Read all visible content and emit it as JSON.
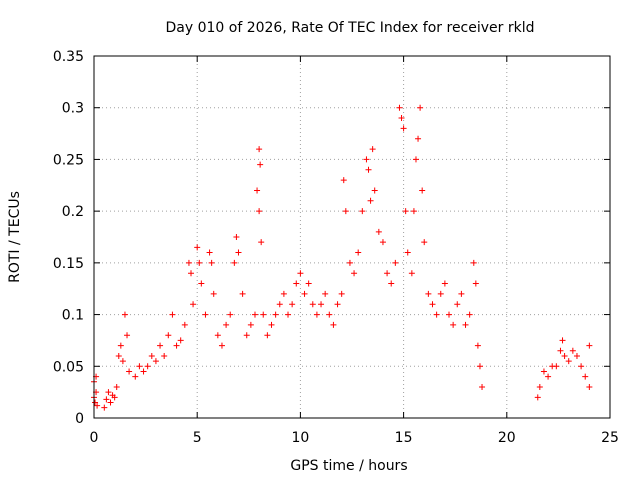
{
  "chart_data": {
    "type": "scatter",
    "title": "Day 010 of 2026, Rate Of TEC Index for receiver rkld",
    "xlabel": "GPS time / hours",
    "ylabel": "ROTI / TECUs",
    "xlim": [
      0,
      25
    ],
    "ylim": [
      0,
      0.35
    ],
    "x_ticks": [
      0,
      5,
      10,
      15,
      20,
      25
    ],
    "x_tick_labels": [
      "0",
      "5",
      "10",
      "15",
      "20",
      "25"
    ],
    "y_ticks": [
      0,
      0.05,
      0.1,
      0.15,
      0.2,
      0.25,
      0.3,
      0.35
    ],
    "y_tick_labels": [
      "0",
      "0.05",
      "0.1",
      "0.15",
      "0.2",
      "0.25",
      "0.3",
      "0.35"
    ],
    "grid": true,
    "legend": "none",
    "marker": "plus",
    "series_color": "#ff0000",
    "series": [
      {
        "points": [
          [
            0.0,
            0.02
          ],
          [
            0.0,
            0.035
          ],
          [
            0.05,
            0.015
          ],
          [
            0.1,
            0.025
          ],
          [
            0.1,
            0.04
          ],
          [
            0.15,
            0.012
          ],
          [
            0.5,
            0.01
          ],
          [
            0.6,
            0.018
          ],
          [
            0.7,
            0.025
          ],
          [
            0.8,
            0.015
          ],
          [
            0.9,
            0.022
          ],
          [
            1.0,
            0.02
          ],
          [
            1.1,
            0.03
          ],
          [
            1.2,
            0.06
          ],
          [
            1.3,
            0.07
          ],
          [
            1.4,
            0.055
          ],
          [
            1.5,
            0.1
          ],
          [
            1.6,
            0.08
          ],
          [
            1.7,
            0.045
          ],
          [
            2.0,
            0.04
          ],
          [
            2.2,
            0.05
          ],
          [
            2.4,
            0.045
          ],
          [
            2.6,
            0.05
          ],
          [
            2.8,
            0.06
          ],
          [
            3.0,
            0.055
          ],
          [
            3.2,
            0.07
          ],
          [
            3.4,
            0.06
          ],
          [
            3.6,
            0.08
          ],
          [
            3.8,
            0.1
          ],
          [
            4.0,
            0.07
          ],
          [
            4.2,
            0.075
          ],
          [
            4.4,
            0.09
          ],
          [
            4.6,
            0.15
          ],
          [
            4.7,
            0.14
          ],
          [
            4.8,
            0.11
          ],
          [
            5.0,
            0.165
          ],
          [
            5.1,
            0.15
          ],
          [
            5.2,
            0.13
          ],
          [
            5.4,
            0.1
          ],
          [
            5.6,
            0.16
          ],
          [
            5.7,
            0.15
          ],
          [
            5.8,
            0.12
          ],
          [
            6.0,
            0.08
          ],
          [
            6.2,
            0.07
          ],
          [
            6.4,
            0.09
          ],
          [
            6.6,
            0.1
          ],
          [
            6.8,
            0.15
          ],
          [
            6.9,
            0.175
          ],
          [
            7.0,
            0.16
          ],
          [
            7.2,
            0.12
          ],
          [
            7.4,
            0.08
          ],
          [
            7.6,
            0.09
          ],
          [
            7.8,
            0.1
          ],
          [
            8.0,
            0.26
          ],
          [
            8.05,
            0.245
          ],
          [
            7.9,
            0.22
          ],
          [
            8.0,
            0.2
          ],
          [
            8.1,
            0.17
          ],
          [
            8.2,
            0.1
          ],
          [
            8.4,
            0.08
          ],
          [
            8.6,
            0.09
          ],
          [
            8.8,
            0.1
          ],
          [
            9.0,
            0.11
          ],
          [
            9.2,
            0.12
          ],
          [
            9.4,
            0.1
          ],
          [
            9.6,
            0.11
          ],
          [
            9.8,
            0.13
          ],
          [
            10.0,
            0.14
          ],
          [
            10.2,
            0.12
          ],
          [
            10.4,
            0.13
          ],
          [
            10.6,
            0.11
          ],
          [
            10.8,
            0.1
          ],
          [
            11.0,
            0.11
          ],
          [
            11.2,
            0.12
          ],
          [
            11.4,
            0.1
          ],
          [
            11.6,
            0.09
          ],
          [
            11.8,
            0.11
          ],
          [
            12.0,
            0.12
          ],
          [
            12.1,
            0.23
          ],
          [
            12.2,
            0.2
          ],
          [
            12.4,
            0.15
          ],
          [
            12.6,
            0.14
          ],
          [
            12.8,
            0.16
          ],
          [
            13.0,
            0.2
          ],
          [
            13.2,
            0.25
          ],
          [
            13.3,
            0.24
          ],
          [
            13.4,
            0.21
          ],
          [
            13.5,
            0.26
          ],
          [
            13.6,
            0.22
          ],
          [
            13.8,
            0.18
          ],
          [
            14.0,
            0.17
          ],
          [
            14.2,
            0.14
          ],
          [
            14.4,
            0.13
          ],
          [
            14.6,
            0.15
          ],
          [
            14.8,
            0.3
          ],
          [
            14.9,
            0.29
          ],
          [
            15.0,
            0.28
          ],
          [
            15.1,
            0.2
          ],
          [
            15.2,
            0.16
          ],
          [
            15.4,
            0.14
          ],
          [
            15.5,
            0.2
          ],
          [
            15.6,
            0.25
          ],
          [
            15.7,
            0.27
          ],
          [
            15.8,
            0.3
          ],
          [
            15.9,
            0.22
          ],
          [
            16.0,
            0.17
          ],
          [
            16.2,
            0.12
          ],
          [
            16.4,
            0.11
          ],
          [
            16.6,
            0.1
          ],
          [
            16.8,
            0.12
          ],
          [
            17.0,
            0.13
          ],
          [
            17.2,
            0.1
          ],
          [
            17.4,
            0.09
          ],
          [
            17.6,
            0.11
          ],
          [
            17.8,
            0.12
          ],
          [
            18.0,
            0.09
          ],
          [
            18.2,
            0.1
          ],
          [
            18.4,
            0.15
          ],
          [
            18.5,
            0.13
          ],
          [
            18.6,
            0.07
          ],
          [
            18.7,
            0.05
          ],
          [
            18.8,
            0.03
          ],
          [
            21.5,
            0.02
          ],
          [
            21.6,
            0.03
          ],
          [
            21.8,
            0.045
          ],
          [
            22.0,
            0.04
          ],
          [
            22.2,
            0.05
          ],
          [
            22.4,
            0.05
          ],
          [
            22.6,
            0.065
          ],
          [
            22.7,
            0.075
          ],
          [
            22.8,
            0.06
          ],
          [
            23.0,
            0.055
          ],
          [
            23.2,
            0.065
          ],
          [
            23.4,
            0.06
          ],
          [
            23.6,
            0.05
          ],
          [
            23.8,
            0.04
          ],
          [
            24.0,
            0.07
          ],
          [
            24.0,
            0.03
          ]
        ]
      }
    ]
  }
}
